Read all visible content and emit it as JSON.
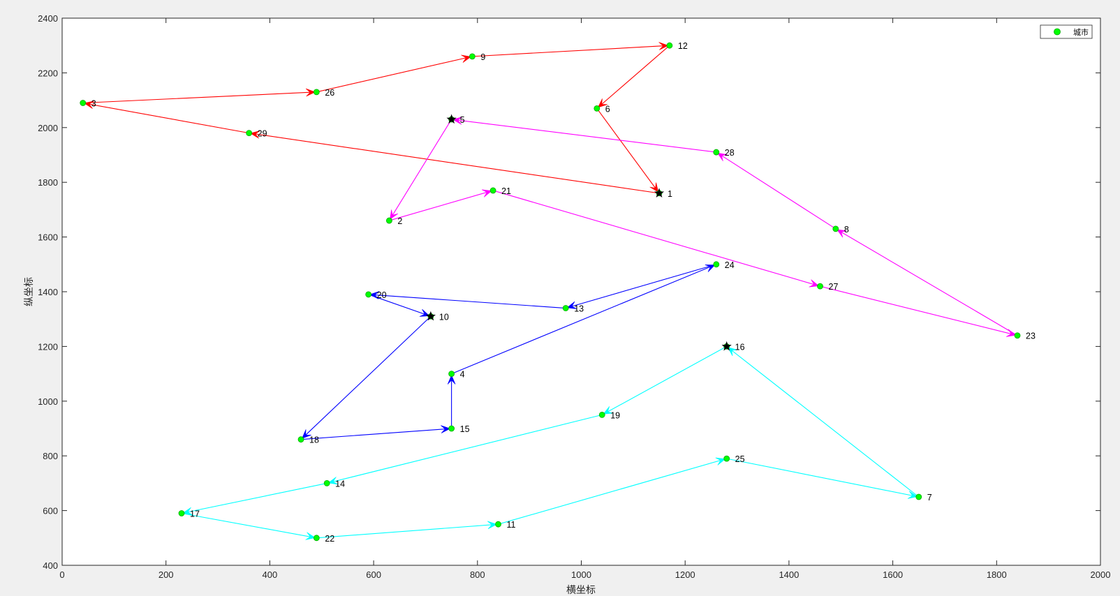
{
  "colors": {
    "figure_bg": "#f0f0f0",
    "axes_bg": "#ffffff",
    "axis": "#262626",
    "tick_label": "#262626",
    "point_fill": "#00ff00",
    "point_stroke": "#00aa00",
    "depot_marker": "#000000",
    "city_label": "#000000"
  },
  "chart_data": {
    "type": "scatter",
    "title": "",
    "xlabel": "横坐标",
    "ylabel": "纵坐标",
    "xlim": [
      0,
      2000
    ],
    "ylim": [
      400,
      2400
    ],
    "xticks": [
      0,
      200,
      400,
      600,
      800,
      1000,
      1200,
      1400,
      1600,
      1800,
      2000
    ],
    "yticks": [
      400,
      600,
      800,
      1000,
      1200,
      1400,
      1600,
      1800,
      2000,
      2200,
      2400
    ],
    "grid": false,
    "legend": {
      "placement": "top-right",
      "entries": [
        {
          "label": "城市",
          "marker": "circle",
          "color": "#00ff00"
        }
      ]
    },
    "cities": [
      {
        "id": "1",
        "x": 1150,
        "y": 1760,
        "depot": true
      },
      {
        "id": "2",
        "x": 630,
        "y": 1660
      },
      {
        "id": "3",
        "x": 40,
        "y": 2090
      },
      {
        "id": "4",
        "x": 750,
        "y": 1100
      },
      {
        "id": "5",
        "x": 750,
        "y": 2030,
        "depot": true
      },
      {
        "id": "6",
        "x": 1030,
        "y": 2070
      },
      {
        "id": "7",
        "x": 1650,
        "y": 650
      },
      {
        "id": "8",
        "x": 1490,
        "y": 1630
      },
      {
        "id": "9",
        "x": 790,
        "y": 2260
      },
      {
        "id": "10",
        "x": 710,
        "y": 1310,
        "depot": true
      },
      {
        "id": "11",
        "x": 840,
        "y": 550
      },
      {
        "id": "12",
        "x": 1170,
        "y": 2300
      },
      {
        "id": "13",
        "x": 970,
        "y": 1340
      },
      {
        "id": "14",
        "x": 510,
        "y": 700
      },
      {
        "id": "15",
        "x": 750,
        "y": 900
      },
      {
        "id": "16",
        "x": 1280,
        "y": 1200,
        "depot": true
      },
      {
        "id": "17",
        "x": 230,
        "y": 590
      },
      {
        "id": "18",
        "x": 460,
        "y": 860
      },
      {
        "id": "19",
        "x": 1040,
        "y": 950
      },
      {
        "id": "20",
        "x": 590,
        "y": 1390
      },
      {
        "id": "21",
        "x": 830,
        "y": 1770
      },
      {
        "id": "22",
        "x": 490,
        "y": 500
      },
      {
        "id": "23",
        "x": 1840,
        "y": 1240
      },
      {
        "id": "24",
        "x": 1260,
        "y": 1500
      },
      {
        "id": "25",
        "x": 1280,
        "y": 790
      },
      {
        "id": "26",
        "x": 490,
        "y": 2130
      },
      {
        "id": "27",
        "x": 1460,
        "y": 1420
      },
      {
        "id": "28",
        "x": 1260,
        "y": 1910
      },
      {
        "id": "29",
        "x": 360,
        "y": 1980
      }
    ],
    "routes": [
      {
        "color": "#ff0000",
        "path": [
          "1",
          "29",
          "3",
          "26",
          "9",
          "12",
          "6",
          "1"
        ]
      },
      {
        "color": "#ff00ff",
        "path": [
          "5",
          "2",
          "21",
          "27",
          "23",
          "8",
          "28",
          "5"
        ]
      },
      {
        "color": "#0000ff",
        "path": [
          "10",
          "18",
          "15",
          "4",
          "24",
          "13",
          "20",
          "10"
        ]
      },
      {
        "color": "#00ffff",
        "path": [
          "16",
          "19",
          "14",
          "17",
          "22",
          "11",
          "25",
          "7",
          "16"
        ]
      }
    ]
  }
}
